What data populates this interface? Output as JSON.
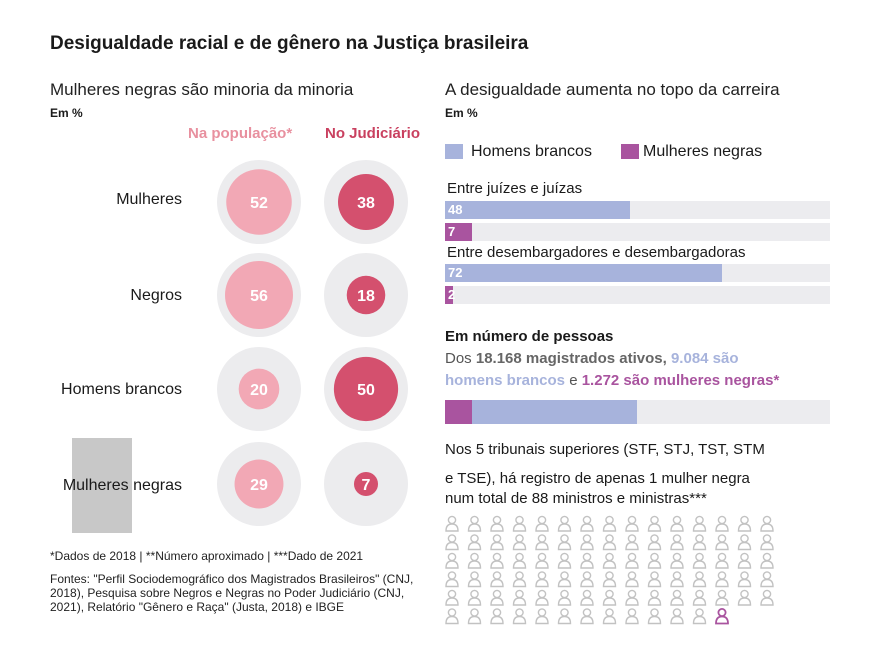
{
  "title": "Desigualdade racial e de gênero na Justiça brasileira",
  "left": {
    "subtitle": "Mulheres negras são minoria da minoria",
    "unit": "Em %",
    "col1": "Na população*",
    "col2": "No Judiciário"
  },
  "right": {
    "subtitle": "A desigualdade aumenta no topo da carreira",
    "unit": "Em %",
    "legend": [
      "Homens brancos",
      "Mulheres negras"
    ],
    "groups": [
      "Entre juízes e juízas",
      "Entre desembargadores e desembargadoras"
    ],
    "people_heading": "Em número de pessoas",
    "people_line1_prefix": "Dos",
    "people_line1_total": "18.168 magistrados ativos,",
    "people_line1_white": "9.084 são",
    "people_line2_white": "homens brancos",
    "people_line2_mid": "e",
    "people_line2_black": "1.272 são mulheres negras*",
    "tribunals_line1": "Nos 5 tribunais superiores (STF, STJ, TST, STM",
    "tribunals_line2": "e TSE), há registro de apenas 1 mulher negra",
    "tribunals_line3": "num total de 88 ministros e ministras***"
  },
  "footnote": "*Dados de 2018 | **Número aproximado | ***Dado de 2021",
  "sources": "Fontes: \"Perfil Sociodemográfico dos Magistrados Brasileiros\" (CNJ, 2018), Pesquisa sobre Negros e Negras no Poder Judiciário (CNJ, 2021), Relatório \"Gênero e Raça\" (Justa, 2018) e IBGE",
  "colors": {
    "population": "#f2a8b5",
    "judiciary": "#d4506e",
    "population_text": "#e8909f",
    "judiciary_text": "#c9405f",
    "white_men": "#a7b3dc",
    "black_women": "#a9549f",
    "ring": "#ececee",
    "track": "#ececef",
    "icon_grey": "#c2c2c2"
  },
  "chart_data": [
    {
      "type": "bubble",
      "title": "Mulheres negras são minoria da minoria",
      "unit": "Em %",
      "categories": [
        "Mulheres",
        "Negros",
        "Homens brancos",
        "Mulheres negras"
      ],
      "series": [
        {
          "name": "Na população*",
          "values": [
            52,
            56,
            20,
            29
          ]
        },
        {
          "name": "No Judiciário",
          "values": [
            38,
            18,
            50,
            7
          ]
        }
      ]
    },
    {
      "type": "bar",
      "title": "A desigualdade aumenta no topo da carreira",
      "unit": "Em %",
      "categories": [
        "Entre juízes e juízas",
        "Entre desembargadores e desembargadoras"
      ],
      "series": [
        {
          "name": "Homens brancos",
          "values": [
            48,
            72
          ]
        },
        {
          "name": "Mulheres negras",
          "values": [
            7,
            2
          ]
        }
      ],
      "xlim": [
        0,
        100
      ]
    },
    {
      "type": "bar",
      "title": "Em número de pessoas",
      "total": 18168,
      "series": [
        {
          "name": "homens brancos",
          "values": [
            9084
          ]
        },
        {
          "name": "mulheres negras",
          "values": [
            1272
          ]
        }
      ]
    },
    {
      "type": "pictogram",
      "total": 88,
      "highlighted": 1
    }
  ]
}
